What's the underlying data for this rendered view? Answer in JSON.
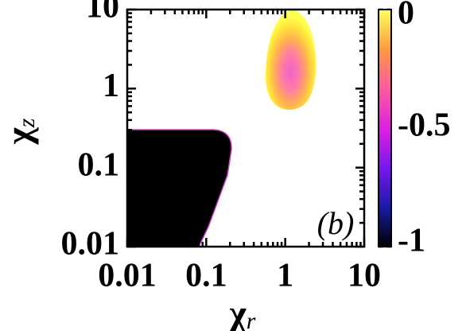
{
  "chart_data": {
    "type": "heatmap",
    "xlabel": "χr",
    "ylabel": "χz",
    "annotation": "(b)",
    "xlim": [
      0.01,
      10
    ],
    "ylim": [
      0.01,
      10
    ],
    "xticks": [
      0.01,
      0.1,
      1,
      10
    ],
    "yticks": [
      0.01,
      0.1,
      1,
      10
    ],
    "xscale": "log",
    "yscale": "log",
    "colorbar": {
      "lim": [
        -1,
        0
      ],
      "ticks": [
        0,
        -0.5,
        -1
      ],
      "colors": [
        "#000000",
        "#1a1aa8",
        "#7a16f0",
        "#e020e0",
        "#ff5aa0",
        "#ff9a40",
        "#ffff60"
      ]
    }
  }
}
